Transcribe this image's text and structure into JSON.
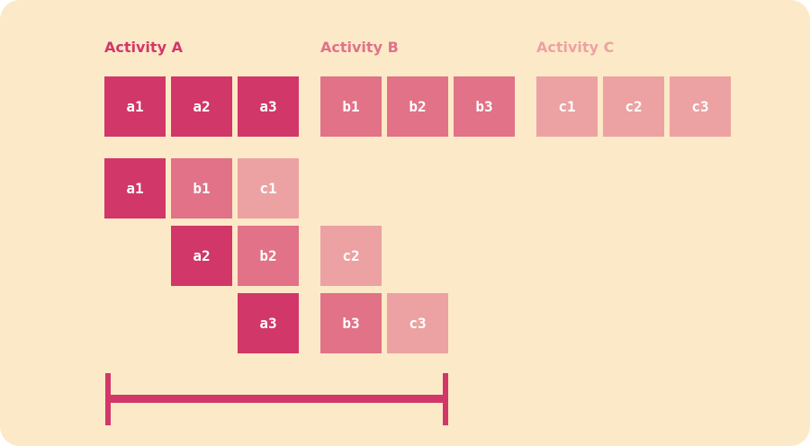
{
  "colors": {
    "background": "#fce9c8",
    "activity_a": "#d23769",
    "activity_b": "#e17287",
    "activity_c": "#eca2a2",
    "bracket": "#d23769"
  },
  "labels": {
    "activity_a": "Activity A",
    "activity_b": "Activity B",
    "activity_c": "Activity C"
  },
  "sequential": {
    "a1": "a1",
    "a2": "a2",
    "a3": "a3",
    "b1": "b1",
    "b2": "b2",
    "b3": "b3",
    "c1": "c1",
    "c2": "c2",
    "c3": "c3"
  },
  "pipelined": {
    "a1": "a1",
    "b1": "b1",
    "c1": "c1",
    "a2": "a2",
    "b2": "b2",
    "c2": "c2",
    "a3": "a3",
    "b3": "b3",
    "c3": "c3"
  }
}
